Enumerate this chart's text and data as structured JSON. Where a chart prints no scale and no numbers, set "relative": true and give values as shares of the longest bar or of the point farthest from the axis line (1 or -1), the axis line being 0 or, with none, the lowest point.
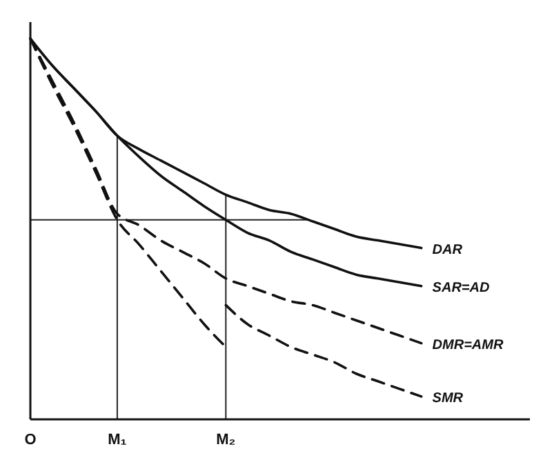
{
  "chart_data": {
    "type": "line",
    "relative": true,
    "categories": [
      "O",
      null,
      null,
      null,
      "M₁",
      null,
      null,
      null,
      null,
      "M₂",
      null,
      null,
      null,
      null,
      null,
      null,
      null,
      null,
      null,
      null,
      null,
      null,
      null,
      null
    ],
    "series": [
      {
        "name": "DAR",
        "color": "#111111",
        "line_style": "solid",
        "values": [
          1,
          0.93,
          0.87,
          0.81,
          0.745,
          0.71,
          0.68,
          0.65,
          0.62,
          0.59,
          0.57,
          0.55,
          0.54,
          0.52,
          0.5,
          0.48,
          0.47,
          0.46,
          0.45,
          null,
          null,
          null,
          null,
          null
        ]
      },
      {
        "name": "SAR=AD",
        "color": "#111111",
        "line_style": "solid",
        "values": [
          1,
          0.93,
          0.87,
          0.81,
          0.745,
          0.69,
          0.64,
          0.6,
          0.56,
          0.524,
          0.49,
          0.47,
          0.44,
          0.42,
          0.4,
          0.38,
          0.37,
          0.36,
          0.35,
          null,
          null,
          null,
          null,
          null
        ]
      },
      {
        "name": "DMR=AMR",
        "color": "#111111",
        "line_style": "dashed",
        "values": [
          1,
          0.89,
          0.78,
          0.66,
          0.54,
          0.51,
          0.47,
          0.44,
          0.41,
          0.37,
          0.35,
          0.33,
          0.31,
          0.3,
          0.28,
          0.26,
          0.24,
          0.22,
          0.2,
          null,
          null,
          null,
          null,
          null
        ]
      },
      {
        "color": "#111111",
        "line_style": "dashed",
        "values": [
          1,
          0.88,
          0.77,
          0.65,
          0.524,
          0.46,
          0.39,
          0.32,
          0.25,
          0.19,
          null,
          null,
          null,
          null,
          null,
          null,
          null,
          null,
          null,
          null,
          null,
          null,
          null,
          null
        ]
      },
      {
        "name": "SMR",
        "color": "#111111",
        "line_style": "dashed",
        "values": [
          null,
          null,
          null,
          null,
          null,
          null,
          null,
          null,
          null,
          0.3,
          0.25,
          0.22,
          0.19,
          0.17,
          0.15,
          0.12,
          0.1,
          0.08,
          0.06,
          null,
          null,
          null,
          null,
          null
        ]
      }
    ],
    "ref_lines": [
      {
        "axis": "x",
        "value": "M₁"
      },
      {
        "axis": "x",
        "value": "M₂"
      },
      {
        "axis": "y",
        "value": 0.524
      }
    ],
    "marker": "none"
  }
}
